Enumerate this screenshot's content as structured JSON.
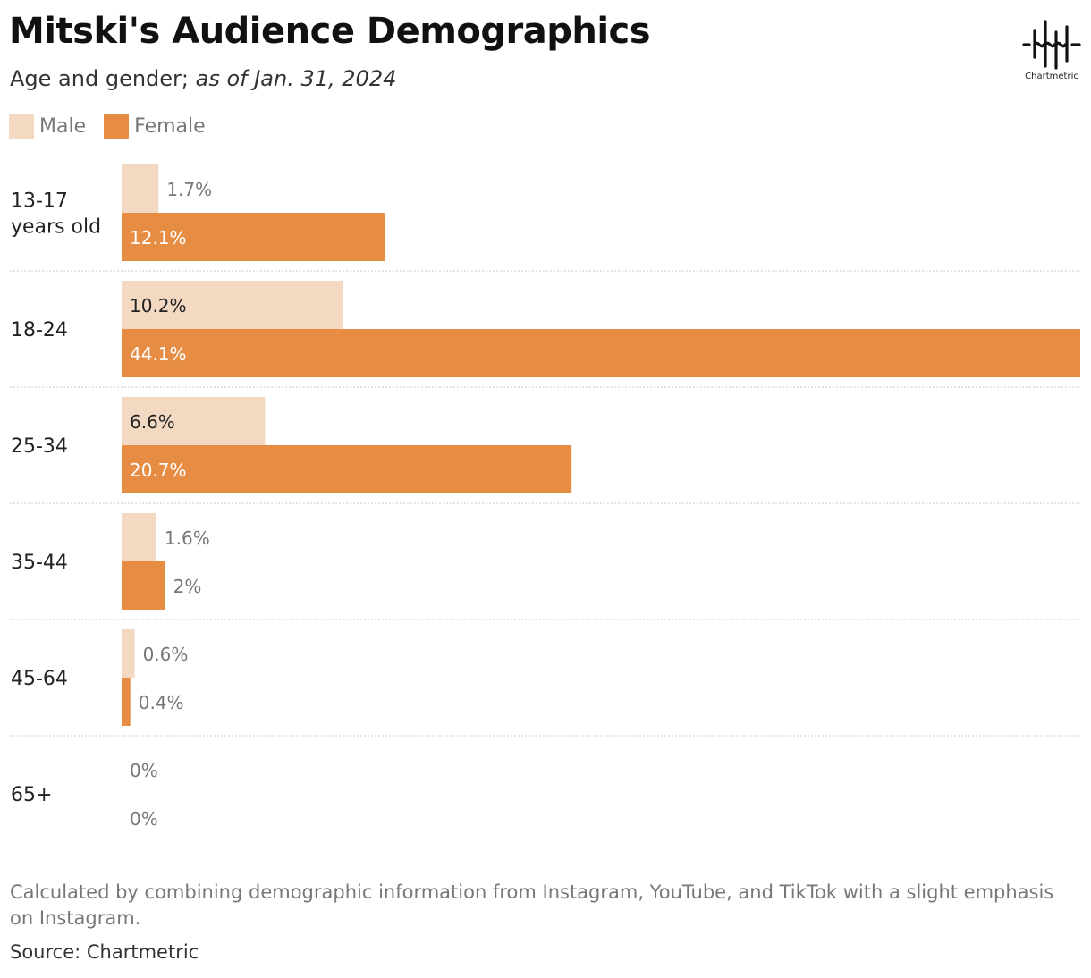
{
  "header": {
    "title": "Mitski's Audience Demographics",
    "subtitle_prefix": "Age and gender; ",
    "subtitle_date": "as of Jan. 31, 2024"
  },
  "logo": {
    "text": "Chartmetric"
  },
  "legend": {
    "male": "Male",
    "female": "Female"
  },
  "colors": {
    "male": "#f3d9c2",
    "female": "#e68c43",
    "label_on_bar": "#ffffff",
    "label_dark": "#222222",
    "label_outside": "#777777",
    "separator": "#c8c8c8"
  },
  "chart_data": {
    "type": "bar",
    "orientation": "horizontal",
    "categories": [
      "13-17 years old",
      "18-24",
      "25-34",
      "35-44",
      "45-64",
      "65+"
    ],
    "category_lines": [
      [
        "13-17",
        "years old"
      ],
      [
        "18-24"
      ],
      [
        "25-34"
      ],
      [
        "35-44"
      ],
      [
        "45-64"
      ],
      [
        "65+"
      ]
    ],
    "series": [
      {
        "name": "Male",
        "values": [
          1.7,
          10.2,
          6.6,
          1.6,
          0.6,
          0
        ],
        "labels": [
          "1.7%",
          "10.2%",
          "6.6%",
          "1.6%",
          "0.6%",
          "0%"
        ]
      },
      {
        "name": "Female",
        "values": [
          12.1,
          44.1,
          20.7,
          2,
          0.4,
          0
        ],
        "labels": [
          "12.1%",
          "44.1%",
          "20.7%",
          "2%",
          "0.4%",
          "0%"
        ]
      }
    ],
    "xlim": [
      0,
      44.1
    ],
    "grid": false,
    "legend_position": "top-left"
  },
  "footer": {
    "note": "Calculated by combining demographic information from Instagram, YouTube, and TikTok with a slight emphasis on Instagram.",
    "source": "Source: Chartmetric"
  }
}
